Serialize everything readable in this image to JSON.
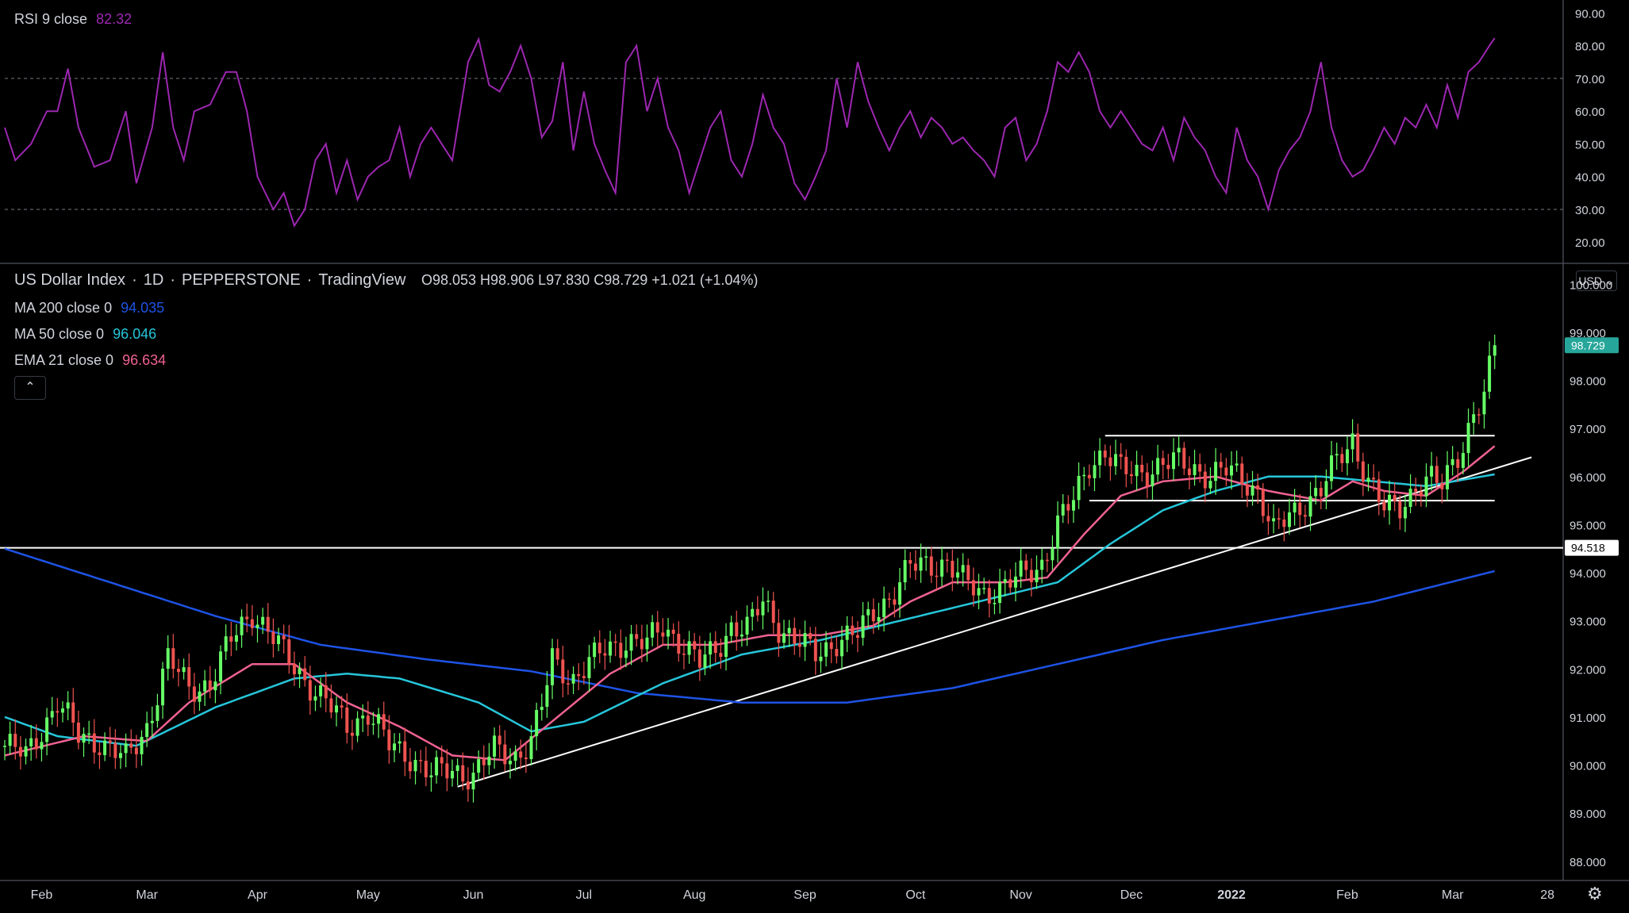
{
  "rsi_panel": {
    "label": "RSI 9 close",
    "value": "82.32",
    "value_color": "#9c27b0",
    "line_color": "#9c27b0",
    "ticks": [
      "90.00",
      "80.00",
      "70.00",
      "60.00",
      "50.00",
      "40.00",
      "30.00",
      "20.00"
    ],
    "levels": [
      70,
      30
    ]
  },
  "price_panel": {
    "title": "US Dollar Index",
    "interval": "1D",
    "source": "PEPPERSTONE",
    "platform": "TradingView",
    "ohlc": {
      "open": "O98.053",
      "high": "H98.906",
      "low": "L97.830",
      "close": "C98.729",
      "change": "+1.021 (+1.04%)"
    },
    "indicators": [
      {
        "label": "MA 200 close 0",
        "value": "94.035",
        "color": "#1e53e5"
      },
      {
        "label": "MA 50 close 0",
        "value": "96.046",
        "color": "#26c6da"
      },
      {
        "label": "EMA 21 close 0",
        "value": "96.634",
        "color": "#f06292"
      }
    ],
    "ticks": [
      "100.000",
      "99.000",
      "98.000",
      "97.000",
      "96.000",
      "95.000",
      "94.000",
      "93.000",
      "92.000",
      "91.000",
      "90.000",
      "89.000",
      "88.000"
    ],
    "last_price_tag": "98.729",
    "level_tag": "94.518",
    "currency_button": "USD",
    "collapse_icon": "chevron-up-icon",
    "settings_icon": "gear-icon"
  },
  "time_axis": [
    "Feb",
    "Mar",
    "Apr",
    "May",
    "Jun",
    "Jul",
    "Aug",
    "Sep",
    "Oct",
    "Nov",
    "Dec",
    "2022",
    "Feb",
    "Mar",
    "28"
  ],
  "chart_data": {
    "type": "line",
    "symbol": "US Dollar Index",
    "colors": {
      "up": "#26a69a",
      "up_body": "#66ff66",
      "down": "#ef5350",
      "background": "#000000",
      "grid": "#1e222d"
    },
    "price_ylim": [
      87.6,
      100.4
    ],
    "rsi_ylim": [
      14,
      93
    ],
    "x_index_labels": [
      {
        "idx": 7,
        "label": "Feb"
      },
      {
        "idx": 27,
        "label": "Mar"
      },
      {
        "idx": 48,
        "label": "Apr"
      },
      {
        "idx": 69,
        "label": "May"
      },
      {
        "idx": 89,
        "label": "Jun"
      },
      {
        "idx": 110,
        "label": "Jul"
      },
      {
        "idx": 131,
        "label": "Aug"
      },
      {
        "idx": 152,
        "label": "Sep"
      },
      {
        "idx": 173,
        "label": "Oct"
      },
      {
        "idx": 193,
        "label": "Nov"
      },
      {
        "idx": 214,
        "label": "Dec"
      },
      {
        "idx": 233,
        "label": "2022"
      },
      {
        "idx": 255,
        "label": "Feb"
      },
      {
        "idx": 275,
        "label": "Mar"
      },
      {
        "idx": 293,
        "label": "28"
      }
    ],
    "close_anchors": [
      [
        0,
        90.4
      ],
      [
        4,
        90.2
      ],
      [
        10,
        91.3
      ],
      [
        14,
        90.6
      ],
      [
        18,
        90.5
      ],
      [
        23,
        90.1
      ],
      [
        27,
        90.8
      ],
      [
        31,
        92.2
      ],
      [
        35,
        91.6
      ],
      [
        39,
        91.7
      ],
      [
        43,
        92.6
      ],
      [
        47,
        93.2
      ],
      [
        50,
        92.8
      ],
      [
        53,
        92.3
      ],
      [
        57,
        91.8
      ],
      [
        61,
        91.3
      ],
      [
        65,
        90.8
      ],
      [
        69,
        91.1
      ],
      [
        73,
        90.4
      ],
      [
        77,
        90.2
      ],
      [
        81,
        89.8
      ],
      [
        85,
        89.9
      ],
      [
        89,
        89.8
      ],
      [
        93,
        90.3
      ],
      [
        97,
        90.2
      ],
      [
        100,
        90.5
      ],
      [
        102,
        91.2
      ],
      [
        104,
        92.2
      ],
      [
        108,
        91.8
      ],
      [
        111,
        92.1
      ],
      [
        114,
        92.4
      ],
      [
        118,
        92.6
      ],
      [
        122,
        92.5
      ],
      [
        125,
        92.9
      ],
      [
        128,
        92.6
      ],
      [
        132,
        92.1
      ],
      [
        135,
        92.4
      ],
      [
        138,
        92.9
      ],
      [
        141,
        92.8
      ],
      [
        144,
        93.4
      ],
      [
        147,
        92.9
      ],
      [
        150,
        92.6
      ],
      [
        154,
        92.3
      ],
      [
        158,
        92.6
      ],
      [
        162,
        92.7
      ],
      [
        165,
        93.2
      ],
      [
        169,
        93.6
      ],
      [
        172,
        94.1
      ],
      [
        175,
        94.2
      ],
      [
        179,
        94.2
      ],
      [
        182,
        93.8
      ],
      [
        186,
        93.6
      ],
      [
        190,
        93.7
      ],
      [
        194,
        94.0
      ],
      [
        197,
        94.2
      ],
      [
        200,
        95.0
      ],
      [
        203,
        95.5
      ],
      [
        206,
        96.3
      ],
      [
        209,
        96.5
      ],
      [
        212,
        96.1
      ],
      [
        215,
        96.1
      ],
      [
        219,
        96.2
      ],
      [
        223,
        96.3
      ],
      [
        226,
        96.2
      ],
      [
        229,
        96.0
      ],
      [
        232,
        96.1
      ],
      [
        235,
        96.0
      ],
      [
        238,
        95.7
      ],
      [
        241,
        94.8
      ],
      [
        244,
        95.2
      ],
      [
        247,
        95.5
      ],
      [
        250,
        95.7
      ],
      [
        253,
        96.3
      ],
      [
        256,
        96.8
      ],
      [
        259,
        95.9
      ],
      [
        262,
        95.3
      ],
      [
        265,
        95.4
      ],
      [
        268,
        95.8
      ],
      [
        271,
        95.9
      ],
      [
        273,
        95.8
      ],
      [
        275,
        96.3
      ],
      [
        277,
        96.7
      ],
      [
        279,
        97.3
      ],
      [
        281,
        97.6
      ],
      [
        283,
        98.73
      ]
    ],
    "series": [
      {
        "name": "US Dollar Index",
        "kind": "candles",
        "color": "#66ff66"
      },
      {
        "name": "MA 200 close 0",
        "last": 94.035,
        "color": "#1e53e5",
        "anchors": [
          [
            0,
            94.5
          ],
          [
            20,
            93.8
          ],
          [
            40,
            93.1
          ],
          [
            60,
            92.5
          ],
          [
            80,
            92.2
          ],
          [
            100,
            91.95
          ],
          [
            120,
            91.5
          ],
          [
            140,
            91.3
          ],
          [
            160,
            91.3
          ],
          [
            180,
            91.6
          ],
          [
            200,
            92.1
          ],
          [
            220,
            92.6
          ],
          [
            240,
            93.0
          ],
          [
            260,
            93.4
          ],
          [
            283,
            94.035
          ]
        ]
      },
      {
        "name": "MA 50 close 0",
        "last": 96.046,
        "color": "#26c6da",
        "anchors": [
          [
            0,
            91.0
          ],
          [
            10,
            90.6
          ],
          [
            25,
            90.4
          ],
          [
            40,
            91.2
          ],
          [
            55,
            91.8
          ],
          [
            65,
            91.9
          ],
          [
            75,
            91.8
          ],
          [
            90,
            91.3
          ],
          [
            100,
            90.7
          ],
          [
            110,
            90.9
          ],
          [
            125,
            91.7
          ],
          [
            140,
            92.3
          ],
          [
            155,
            92.6
          ],
          [
            170,
            93.0
          ],
          [
            185,
            93.4
          ],
          [
            200,
            93.8
          ],
          [
            210,
            94.6
          ],
          [
            220,
            95.3
          ],
          [
            230,
            95.7
          ],
          [
            240,
            96.0
          ],
          [
            250,
            96.0
          ],
          [
            260,
            95.9
          ],
          [
            270,
            95.8
          ],
          [
            283,
            96.046
          ]
        ]
      },
      {
        "name": "EMA 21 close 0",
        "last": 96.634,
        "color": "#f06292",
        "anchors": [
          [
            0,
            90.2
          ],
          [
            15,
            90.6
          ],
          [
            27,
            90.5
          ],
          [
            35,
            91.3
          ],
          [
            47,
            92.1
          ],
          [
            55,
            92.1
          ],
          [
            65,
            91.3
          ],
          [
            75,
            90.8
          ],
          [
            85,
            90.2
          ],
          [
            95,
            90.1
          ],
          [
            105,
            91.0
          ],
          [
            115,
            91.9
          ],
          [
            125,
            92.5
          ],
          [
            135,
            92.5
          ],
          [
            145,
            92.7
          ],
          [
            155,
            92.7
          ],
          [
            165,
            92.9
          ],
          [
            172,
            93.4
          ],
          [
            180,
            93.8
          ],
          [
            190,
            93.8
          ],
          [
            198,
            93.9
          ],
          [
            205,
            94.8
          ],
          [
            212,
            95.6
          ],
          [
            220,
            95.9
          ],
          [
            230,
            96.0
          ],
          [
            240,
            95.7
          ],
          [
            250,
            95.5
          ],
          [
            256,
            95.9
          ],
          [
            262,
            95.7
          ],
          [
            270,
            95.6
          ],
          [
            277,
            96.1
          ],
          [
            283,
            96.634
          ]
        ]
      },
      {
        "name": "RSI 9 close",
        "last": 82.32,
        "color": "#9c27b0",
        "anchors": [
          [
            0,
            55
          ],
          [
            2,
            45
          ],
          [
            5,
            50
          ],
          [
            8,
            60
          ],
          [
            10,
            60
          ],
          [
            12,
            73
          ],
          [
            14,
            55
          ],
          [
            17,
            43
          ],
          [
            20,
            45
          ],
          [
            23,
            60
          ],
          [
            25,
            38
          ],
          [
            28,
            55
          ],
          [
            30,
            78
          ],
          [
            32,
            55
          ],
          [
            34,
            45
          ],
          [
            36,
            60
          ],
          [
            39,
            62
          ],
          [
            42,
            72
          ],
          [
            44,
            72
          ],
          [
            46,
            60
          ],
          [
            48,
            40
          ],
          [
            51,
            30
          ],
          [
            53,
            35
          ],
          [
            55,
            25
          ],
          [
            57,
            30
          ],
          [
            59,
            45
          ],
          [
            61,
            50
          ],
          [
            63,
            35
          ],
          [
            65,
            45
          ],
          [
            67,
            33
          ],
          [
            69,
            40
          ],
          [
            71,
            43
          ],
          [
            73,
            45
          ],
          [
            75,
            55
          ],
          [
            77,
            40
          ],
          [
            79,
            50
          ],
          [
            81,
            55
          ],
          [
            83,
            50
          ],
          [
            85,
            45
          ],
          [
            88,
            75
          ],
          [
            90,
            82
          ],
          [
            92,
            68
          ],
          [
            94,
            66
          ],
          [
            96,
            72
          ],
          [
            98,
            80
          ],
          [
            100,
            70
          ],
          [
            102,
            52
          ],
          [
            104,
            57
          ],
          [
            106,
            75
          ],
          [
            108,
            48
          ],
          [
            110,
            66
          ],
          [
            112,
            50
          ],
          [
            114,
            42
          ],
          [
            116,
            35
          ],
          [
            118,
            75
          ],
          [
            120,
            80
          ],
          [
            122,
            60
          ],
          [
            124,
            70
          ],
          [
            126,
            55
          ],
          [
            128,
            48
          ],
          [
            130,
            35
          ],
          [
            132,
            45
          ],
          [
            134,
            55
          ],
          [
            136,
            60
          ],
          [
            138,
            45
          ],
          [
            140,
            40
          ],
          [
            142,
            50
          ],
          [
            144,
            65
          ],
          [
            146,
            55
          ],
          [
            148,
            50
          ],
          [
            150,
            38
          ],
          [
            152,
            33
          ],
          [
            154,
            40
          ],
          [
            156,
            48
          ],
          [
            158,
            70
          ],
          [
            160,
            55
          ],
          [
            162,
            75
          ],
          [
            164,
            63
          ],
          [
            166,
            55
          ],
          [
            168,
            48
          ],
          [
            170,
            55
          ],
          [
            172,
            60
          ],
          [
            174,
            52
          ],
          [
            176,
            58
          ],
          [
            178,
            55
          ],
          [
            180,
            50
          ],
          [
            182,
            52
          ],
          [
            184,
            48
          ],
          [
            186,
            45
          ],
          [
            188,
            40
          ],
          [
            190,
            55
          ],
          [
            192,
            58
          ],
          [
            194,
            45
          ],
          [
            196,
            50
          ],
          [
            198,
            60
          ],
          [
            200,
            75
          ],
          [
            202,
            72
          ],
          [
            204,
            78
          ],
          [
            206,
            72
          ],
          [
            208,
            60
          ],
          [
            210,
            55
          ],
          [
            212,
            60
          ],
          [
            214,
            55
          ],
          [
            216,
            50
          ],
          [
            218,
            48
          ],
          [
            220,
            55
          ],
          [
            222,
            45
          ],
          [
            224,
            58
          ],
          [
            226,
            52
          ],
          [
            228,
            48
          ],
          [
            230,
            40
          ],
          [
            232,
            35
          ],
          [
            234,
            55
          ],
          [
            236,
            45
          ],
          [
            238,
            40
          ],
          [
            240,
            30
          ],
          [
            242,
            42
          ],
          [
            244,
            48
          ],
          [
            246,
            52
          ],
          [
            248,
            60
          ],
          [
            250,
            75
          ],
          [
            252,
            55
          ],
          [
            254,
            45
          ],
          [
            256,
            40
          ],
          [
            258,
            42
          ],
          [
            260,
            48
          ],
          [
            262,
            55
          ],
          [
            264,
            50
          ],
          [
            266,
            58
          ],
          [
            268,
            55
          ],
          [
            270,
            62
          ],
          [
            272,
            55
          ],
          [
            274,
            68
          ],
          [
            276,
            58
          ],
          [
            278,
            72
          ],
          [
            280,
            75
          ],
          [
            282,
            80
          ],
          [
            283,
            82.32
          ]
        ]
      }
    ],
    "trendline": {
      "from": [
        86,
        89.55
      ],
      "to": [
        290,
        96.4
      ]
    },
    "box_lines": [
      {
        "y": 96.85,
        "from": 209,
        "to": 283
      },
      {
        "y": 95.5,
        "from": 206,
        "to": 283
      }
    ],
    "support_level": 94.518
  }
}
